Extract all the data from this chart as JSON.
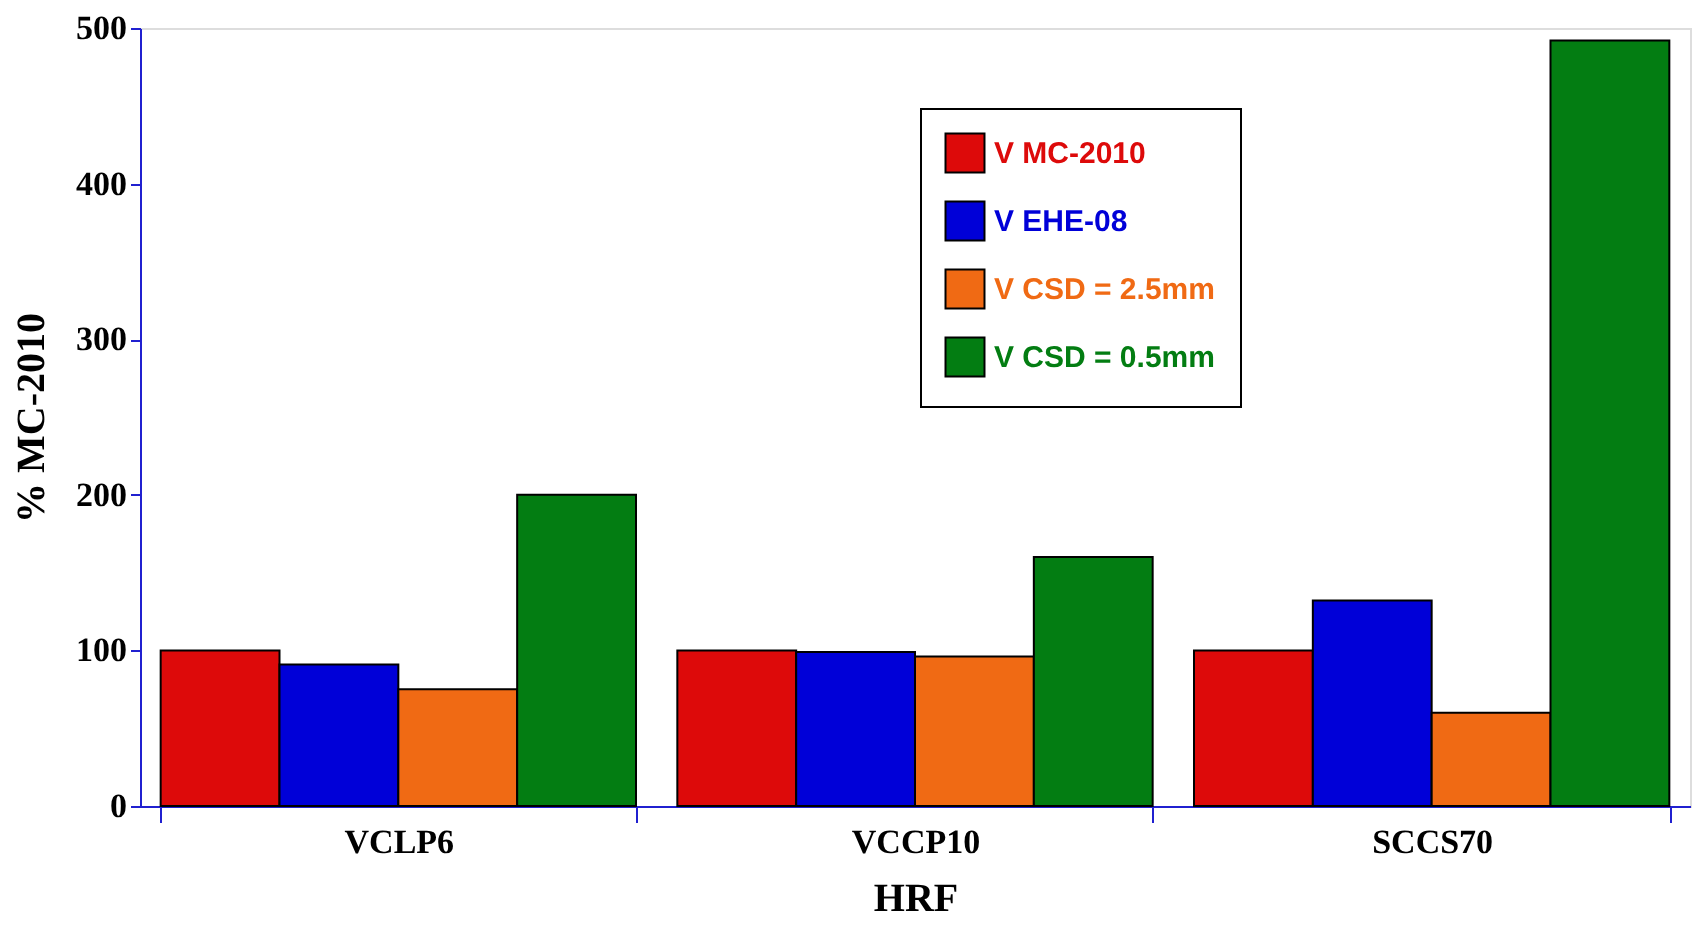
{
  "chart_data": {
    "type": "bar",
    "xlabel": "HRF",
    "ylabel": "% MC-2010",
    "categories": [
      "VCLP6",
      "VCCP10",
      "SCCS70"
    ],
    "series": [
      {
        "name": "V MC-2010",
        "color": "#dd0a0a",
        "values": [
          100,
          100,
          100
        ]
      },
      {
        "name": "V EHE-08",
        "color": "#0000d8",
        "values": [
          91,
          99,
          132
        ]
      },
      {
        "name": "V CSD = 2.5mm",
        "color": "#f06a14",
        "values": [
          75,
          96,
          60
        ]
      },
      {
        "name": "V CSD = 0.5mm",
        "color": "#037d12",
        "values": [
          200,
          160,
          492
        ]
      }
    ],
    "ylim": [
      0,
      500
    ],
    "yticks": [
      0,
      100,
      200,
      300,
      400,
      500
    ],
    "grid": false,
    "legend": "top"
  }
}
